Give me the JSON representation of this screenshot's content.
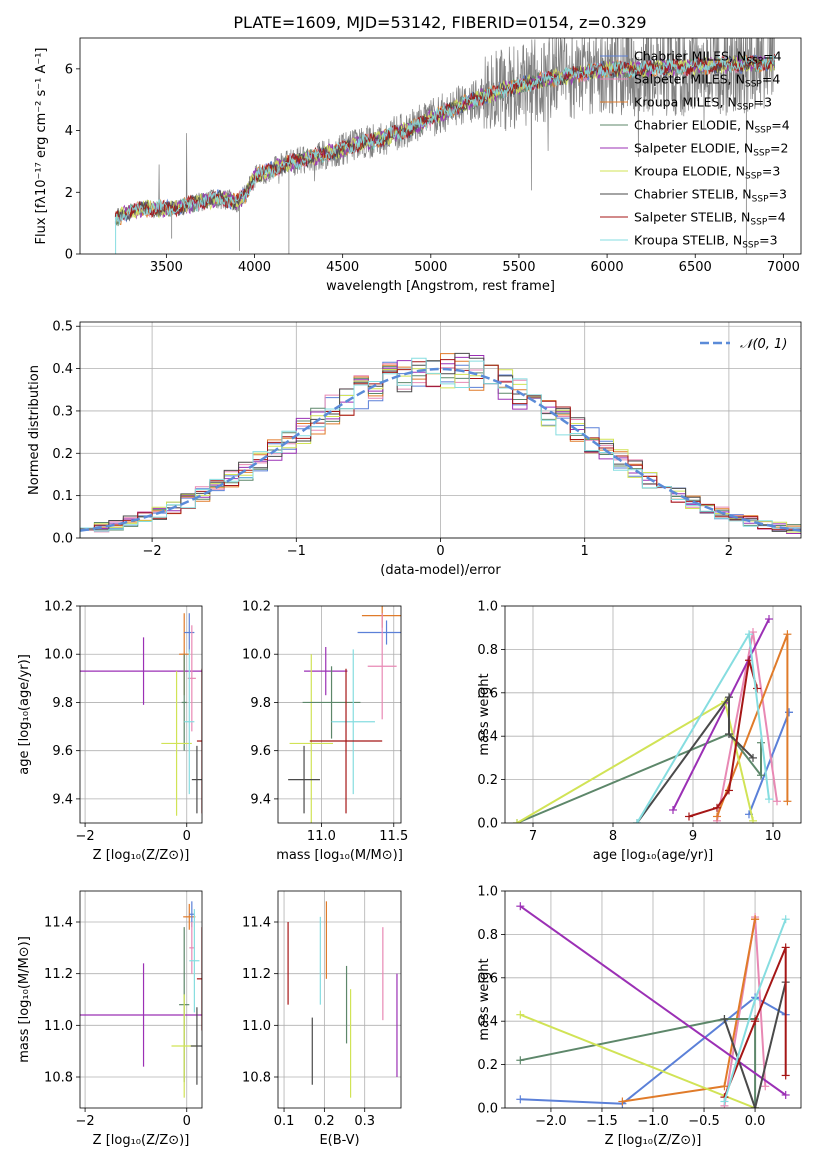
{
  "figure": {
    "title": "PLATE=1609, MJD=53142, FIBERID=0154, z=0.329"
  },
  "colors": {
    "Chabrier MILES": "#5b80d8",
    "Salpeter MILES": "#e889b4",
    "Kroupa MILES": "#e07b2a",
    "Chabrier ELODIE": "#5d876a",
    "Salpeter ELODIE": "#9b30b5",
    "Kroupa ELODIE": "#d1e356",
    "Chabrier STELIB": "#4a4a4a",
    "Salpeter STELIB": "#a51616",
    "Kroupa STELIB": "#86dde0",
    "data": "#808080",
    "normal": "#5b8bd8"
  },
  "chart_data": [
    {
      "id": "spectrum",
      "type": "line",
      "xlabel": "wavelength [Angstrom, rest frame]",
      "ylabel": "Flux [fλ10⁻¹⁷ erg cm⁻² s⁻¹ A⁻¹]",
      "xlim": [
        3010,
        7100
      ],
      "ylim": [
        0,
        7
      ],
      "xticks": [
        3500,
        4000,
        4500,
        5000,
        5500,
        6000,
        6500,
        7000
      ],
      "yticks": [
        0,
        2,
        4,
        6
      ],
      "legend_position": "right",
      "legend": [
        {
          "name": "Chabrier MILES",
          "n_ssp": "4"
        },
        {
          "name": "Salpeter MILES",
          "n_ssp": "4"
        },
        {
          "name": "Kroupa MILES",
          "n_ssp": "3"
        },
        {
          "name": "Chabrier ELODIE",
          "n_ssp": "4"
        },
        {
          "name": "Salpeter ELODIE",
          "n_ssp": "2"
        },
        {
          "name": "Kroupa ELODIE",
          "n_ssp": "3"
        },
        {
          "name": "Chabrier STELIB",
          "n_ssp": "3"
        },
        {
          "name": "Salpeter STELIB",
          "n_ssp": "4"
        },
        {
          "name": "Kroupa STELIB",
          "n_ssp": "3"
        }
      ],
      "model_continuum": {
        "x": [
          3210,
          3300,
          3400,
          3500,
          3600,
          3700,
          3800,
          3900,
          3950,
          4000,
          4100,
          4200,
          4300,
          4400,
          4500,
          4600,
          4700,
          4800,
          4900,
          5000,
          5200,
          5400,
          5600,
          5800,
          6000,
          6200,
          6400,
          6600,
          6800,
          6950
        ],
        "y": [
          1.15,
          1.4,
          1.5,
          1.45,
          1.55,
          1.7,
          1.8,
          1.7,
          1.9,
          2.5,
          2.75,
          2.95,
          3.1,
          3.25,
          3.4,
          3.6,
          3.7,
          3.9,
          4.1,
          4.4,
          4.9,
          5.3,
          5.6,
          5.8,
          6.0,
          6.0,
          6.05,
          6.1,
          6.15,
          6.2
        ]
      }
    },
    {
      "id": "residuals",
      "type": "histogram",
      "xlabel": "(data-model)/error",
      "ylabel": "Normed distribution",
      "xlim": [
        -2.5,
        2.5
      ],
      "ylim": [
        0,
        0.51
      ],
      "xticks": [
        -2,
        -1,
        0,
        1,
        2
      ],
      "yticks": [
        0.0,
        0.1,
        0.2,
        0.3,
        0.4,
        0.5
      ],
      "legend_label": "𝒩(0, 1)",
      "legend_position": "upper right",
      "bin_width": 0.1,
      "bin_start": -2.5,
      "reference_curve": "normal(0,1)",
      "grid": true
    },
    {
      "id": "age_vs_Z",
      "type": "scatter",
      "xlabel": "Z [log₁₀(Z/Z⊙)]",
      "ylabel": "age  [log₁₀(age/yr)]",
      "xlim": [
        -2.1,
        0.3
      ],
      "ylim": [
        9.3,
        10.2
      ],
      "xticks": [
        -2,
        0
      ],
      "yticks": [
        9.4,
        9.6,
        9.8,
        10.0,
        10.2
      ],
      "points": [
        {
          "model": "Salpeter ELODIE",
          "x": -0.85,
          "y": 9.93,
          "xerr": 1.4,
          "yerr": 0.14
        },
        {
          "model": "Kroupa MILES",
          "x": -0.05,
          "y": 10.0,
          "xerr": 0.1,
          "yerr": 0.17
        },
        {
          "model": "Chabrier MILES",
          "x": 0.05,
          "y": 10.09,
          "xerr": 0.1,
          "yerr": 0.08
        },
        {
          "model": "Salpeter MILES",
          "x": 0.1,
          "y": 9.9,
          "xerr": 0.08,
          "yerr": 0.22
        },
        {
          "model": "Chabrier ELODIE",
          "x": -0.05,
          "y": 9.8,
          "xerr": 0.05,
          "yerr": 0.2
        },
        {
          "model": "Kroupa ELODIE",
          "x": -0.2,
          "y": 9.63,
          "xerr": 0.3,
          "yerr": 0.3
        },
        {
          "model": "Kroupa STELIB",
          "x": 0.05,
          "y": 9.72,
          "xerr": 0.1,
          "yerr": 0.3
        },
        {
          "model": "Salpeter STELIB",
          "x": 0.3,
          "y": 9.64,
          "xerr": 0.1,
          "yerr": 0.3
        },
        {
          "model": "Chabrier STELIB",
          "x": 0.2,
          "y": 9.48,
          "xerr": 0.1,
          "yerr": 0.14
        }
      ]
    },
    {
      "id": "age_vs_mass",
      "type": "scatter",
      "xlabel": "mass [log₁₀(M/M⊙)]",
      "ylabel": "",
      "xlim": [
        10.7,
        11.55
      ],
      "ylim": [
        9.3,
        10.2
      ],
      "xticks": [
        11.0,
        11.5
      ],
      "yticks": [
        9.4,
        9.6,
        9.8,
        10.0,
        10.2
      ],
      "points": [
        {
          "model": "Kroupa MILES",
          "x": 11.42,
          "y": 10.16,
          "xerr": 0.14,
          "yerr": 0.05
        },
        {
          "model": "Chabrier MILES",
          "x": 11.45,
          "y": 10.09,
          "xerr": 0.2,
          "yerr": 0.05
        },
        {
          "model": "Salpeter MILES",
          "x": 11.42,
          "y": 9.95,
          "xerr": 0.1,
          "yerr": 0.22
        },
        {
          "model": "Salpeter ELODIE",
          "x": 11.03,
          "y": 9.93,
          "xerr": 0.15,
          "yerr": 0.1
        },
        {
          "model": "Kroupa ELODIE",
          "x": 10.93,
          "y": 9.63,
          "xerr": 0.15,
          "yerr": 0.37
        },
        {
          "model": "Chabrier ELODIE",
          "x": 11.07,
          "y": 9.8,
          "xerr": 0.2,
          "yerr": 0.15
        },
        {
          "model": "Kroupa STELIB",
          "x": 11.22,
          "y": 9.72,
          "xerr": 0.15,
          "yerr": 0.3
        },
        {
          "model": "Salpeter STELIB",
          "x": 11.17,
          "y": 9.64,
          "xerr": 0.25,
          "yerr": 0.3
        },
        {
          "model": "Chabrier STELIB",
          "x": 10.88,
          "y": 9.48,
          "xerr": 0.11,
          "yerr": 0.14
        }
      ]
    },
    {
      "id": "mass_weight_vs_age",
      "type": "line",
      "xlabel": "age  [log₁₀(age/yr)]",
      "ylabel": "mass weight",
      "xlim": [
        6.65,
        10.35
      ],
      "ylim": [
        0,
        1.0
      ],
      "xticks": [
        7,
        8,
        9,
        10
      ],
      "yticks": [
        0.0,
        0.2,
        0.4,
        0.6,
        0.8,
        1.0
      ],
      "series": [
        {
          "name": "Chabrier MILES",
          "x": [
            9.7,
            10.2,
            10.2
          ],
          "y": [
            0.04,
            0.51,
            0.51
          ]
        },
        {
          "name": "Salpeter MILES",
          "x": [
            9.3,
            9.75,
            10.05
          ],
          "y": [
            0.01,
            0.88,
            0.1
          ]
        },
        {
          "name": "Kroupa MILES",
          "x": [
            9.3,
            10.18,
            10.18
          ],
          "y": [
            0.03,
            0.87,
            0.1
          ]
        },
        {
          "name": "Chabrier ELODIE",
          "x": [
            6.8,
            9.45,
            9.85,
            9.85
          ],
          "y": [
            0.0,
            0.41,
            0.22,
            0.37
          ]
        },
        {
          "name": "Salpeter ELODIE",
          "x": [
            8.75,
            9.95
          ],
          "y": [
            0.06,
            0.94
          ]
        },
        {
          "name": "Kroupa ELODIE",
          "x": [
            6.8,
            9.4,
            9.75
          ],
          "y": [
            0.0,
            0.56,
            0.01
          ]
        },
        {
          "name": "Chabrier STELIB",
          "x": [
            8.3,
            9.45,
            9.45,
            9.75
          ],
          "y": [
            0.0,
            0.58,
            0.41,
            0.3
          ]
        },
        {
          "name": "Salpeter STELIB",
          "x": [
            8.95,
            9.3,
            9.45,
            9.7,
            9.8
          ],
          "y": [
            0.03,
            0.07,
            0.15,
            0.75,
            0.62
          ]
        },
        {
          "name": "Kroupa STELIB",
          "x": [
            8.3,
            9.7,
            9.95
          ],
          "y": [
            0.0,
            0.87,
            0.11
          ]
        }
      ]
    },
    {
      "id": "mass_vs_Z",
      "type": "scatter",
      "xlabel": "Z [log₁₀(Z/Z⊙)]",
      "ylabel": "mass [log₁₀(M/M⊙)]",
      "xlim": [
        -2.1,
        0.3
      ],
      "ylim": [
        10.68,
        11.52
      ],
      "xticks": [
        -2,
        0
      ],
      "yticks": [
        10.8,
        11.0,
        11.2,
        11.4
      ],
      "points": [
        {
          "model": "Salpeter ELODIE",
          "x": -0.85,
          "y": 11.04,
          "xerr": 1.4,
          "yerr": 0.2
        },
        {
          "model": "Kroupa MILES",
          "x": 0.05,
          "y": 11.42,
          "xerr": 0.12,
          "yerr": 0.05
        },
        {
          "model": "Chabrier MILES",
          "x": 0.1,
          "y": 11.43,
          "xerr": 0.05,
          "yerr": 0.05
        },
        {
          "model": "Salpeter MILES",
          "x": 0.1,
          "y": 11.3,
          "xerr": 0.05,
          "yerr": 0.1
        },
        {
          "model": "Chabrier ELODIE",
          "x": -0.05,
          "y": 11.08,
          "xerr": 0.1,
          "yerr": 0.3
        },
        {
          "model": "Kroupa ELODIE",
          "x": -0.05,
          "y": 10.92,
          "xerr": 0.25,
          "yerr": 0.2
        },
        {
          "model": "Kroupa STELIB",
          "x": 0.15,
          "y": 11.25,
          "xerr": 0.1,
          "yerr": 0.2
        },
        {
          "model": "Salpeter STELIB",
          "x": 0.3,
          "y": 11.18,
          "xerr": 0.1,
          "yerr": 0.2
        },
        {
          "model": "Chabrier STELIB",
          "x": 0.2,
          "y": 10.92,
          "xerr": 0.12,
          "yerr": 0.15
        }
      ]
    },
    {
      "id": "mass_vs_ebv",
      "type": "scatter",
      "xlabel": "E(B-V)",
      "ylabel": "",
      "xlim": [
        0.085,
        0.39
      ],
      "ylim": [
        10.68,
        11.52
      ],
      "xticks": [
        0.1,
        0.2,
        0.3
      ],
      "yticks": [
        10.8,
        11.0,
        11.2,
        11.4
      ],
      "points": [
        {
          "model": "Salpeter STELIB",
          "x": 0.11,
          "y": 11.24,
          "xerr": 0.0,
          "yerr": 0.16
        },
        {
          "model": "Chabrier STELIB",
          "x": 0.17,
          "y": 10.9,
          "xerr": 0.0,
          "yerr": 0.13
        },
        {
          "model": "Kroupa STELIB",
          "x": 0.19,
          "y": 11.25,
          "xerr": 0.0,
          "yerr": 0.17
        },
        {
          "model": "Kroupa MILES",
          "x": 0.205,
          "y": 11.33,
          "xerr": 0.0,
          "yerr": 0.15
        },
        {
          "model": "Chabrier ELODIE",
          "x": 0.255,
          "y": 11.08,
          "xerr": 0.0,
          "yerr": 0.15
        },
        {
          "model": "Kroupa ELODIE",
          "x": 0.265,
          "y": 10.93,
          "xerr": 0.0,
          "yerr": 0.21
        },
        {
          "model": "Salpeter MILES",
          "x": 0.345,
          "y": 11.2,
          "xerr": 0.0,
          "yerr": 0.18
        },
        {
          "model": "Salpeter ELODIE",
          "x": 0.38,
          "y": 11.0,
          "xerr": 0.0,
          "yerr": 0.2
        }
      ]
    },
    {
      "id": "mass_weight_vs_Z",
      "type": "line",
      "xlabel": "Z [log₁₀(Z/Z⊙)]",
      "ylabel": "mass weight",
      "xlim": [
        -2.45,
        0.45
      ],
      "ylim": [
        0,
        1.0
      ],
      "xticks": [
        -2.0,
        -1.5,
        -1.0,
        -0.5,
        0.0
      ],
      "yticks": [
        0.0,
        0.2,
        0.4,
        0.6,
        0.8,
        1.0
      ],
      "series": [
        {
          "name": "Chabrier MILES",
          "x": [
            -2.3,
            -1.3,
            0.0,
            0.3
          ],
          "y": [
            0.04,
            0.02,
            0.51,
            0.43
          ]
        },
        {
          "name": "Salpeter MILES",
          "x": [
            -0.3,
            0.0,
            0.1
          ],
          "y": [
            0.01,
            0.88,
            0.1
          ]
        },
        {
          "name": "Kroupa MILES",
          "x": [
            -1.3,
            -0.3,
            0.0,
            0.0
          ],
          "y": [
            0.03,
            0.1,
            0.87,
            0.87
          ]
        },
        {
          "name": "Chabrier ELODIE",
          "x": [
            -2.3,
            -0.3,
            0.0,
            0.0
          ],
          "y": [
            0.22,
            0.41,
            0.41,
            0.0
          ]
        },
        {
          "name": "Salpeter ELODIE",
          "x": [
            -2.3,
            0.3
          ],
          "y": [
            0.93,
            0.06
          ]
        },
        {
          "name": "Kroupa ELODIE",
          "x": [
            -2.3,
            0.0,
            0.0
          ],
          "y": [
            0.43,
            0.0,
            0.0
          ]
        },
        {
          "name": "Chabrier STELIB",
          "x": [
            -0.3,
            0.0,
            0.3
          ],
          "y": [
            0.41,
            0.0,
            0.58
          ]
        },
        {
          "name": "Salpeter STELIB",
          "x": [
            -0.3,
            0.0,
            0.3,
            0.3
          ],
          "y": [
            0.05,
            0.4,
            0.74,
            0.15
          ]
        },
        {
          "name": "Kroupa STELIB",
          "x": [
            -0.3,
            0.0,
            0.3
          ],
          "y": [
            0.03,
            0.5,
            0.87
          ]
        }
      ]
    }
  ]
}
